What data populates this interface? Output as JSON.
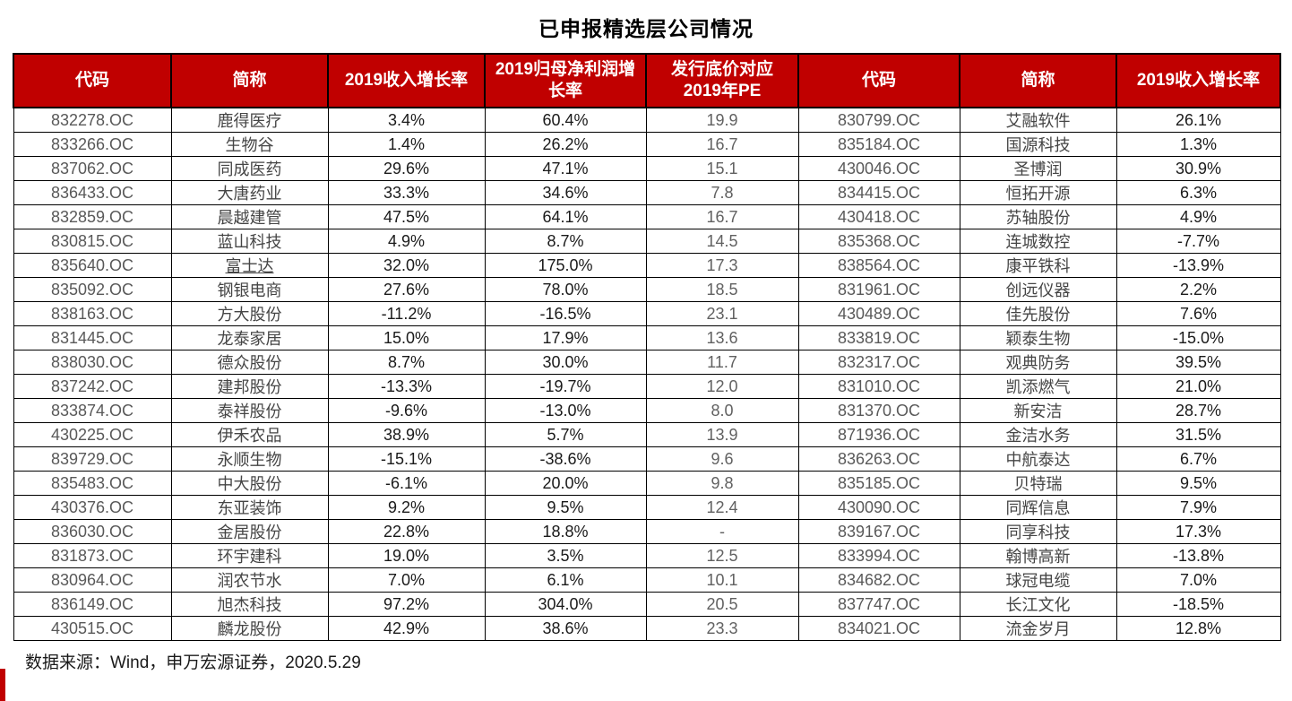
{
  "title": "已申报精选层公司情况",
  "colors": {
    "header_bg": "#C00000",
    "header_text": "#FFFFFF",
    "accent": "#C00000"
  },
  "table": {
    "headers": [
      "代码",
      "简称",
      "2019收入增长率",
      "2019归母净利润增长率",
      "发行底价对应2019年PE",
      "代码",
      "简称",
      "2019收入增长率"
    ],
    "underline_name_rows": [
      6
    ],
    "rows": [
      [
        "832278.OC",
        "鹿得医疗",
        "3.4%",
        "60.4%",
        "19.9",
        "830799.OC",
        "艾融软件",
        "26.1%"
      ],
      [
        "833266.OC",
        "生物谷",
        "1.4%",
        "26.2%",
        "16.7",
        "835184.OC",
        "国源科技",
        "1.3%"
      ],
      [
        "837062.OC",
        "同成医药",
        "29.6%",
        "47.1%",
        "15.1",
        "430046.OC",
        "圣博润",
        "30.9%"
      ],
      [
        "836433.OC",
        "大唐药业",
        "33.3%",
        "34.6%",
        "7.8",
        "834415.OC",
        "恒拓开源",
        "6.3%"
      ],
      [
        "832859.OC",
        "晨越建管",
        "47.5%",
        "64.1%",
        "16.7",
        "430418.OC",
        "苏轴股份",
        "4.9%"
      ],
      [
        "830815.OC",
        "蓝山科技",
        "4.9%",
        "8.7%",
        "14.5",
        "835368.OC",
        "连城数控",
        "-7.7%"
      ],
      [
        "835640.OC",
        "富士达",
        "32.0%",
        "175.0%",
        "17.3",
        "838564.OC",
        "康平铁科",
        "-13.9%"
      ],
      [
        "835092.OC",
        "钢银电商",
        "27.6%",
        "78.0%",
        "18.5",
        "831961.OC",
        "创远仪器",
        "2.2%"
      ],
      [
        "838163.OC",
        "方大股份",
        "-11.2%",
        "-16.5%",
        "23.1",
        "430489.OC",
        "佳先股份",
        "7.6%"
      ],
      [
        "831445.OC",
        "龙泰家居",
        "15.0%",
        "17.9%",
        "13.6",
        "833819.OC",
        "颖泰生物",
        "-15.0%"
      ],
      [
        "838030.OC",
        "德众股份",
        "8.7%",
        "30.0%",
        "11.7",
        "832317.OC",
        "观典防务",
        "39.5%"
      ],
      [
        "837242.OC",
        "建邦股份",
        "-13.3%",
        "-19.7%",
        "12.0",
        "831010.OC",
        "凯添燃气",
        "21.0%"
      ],
      [
        "833874.OC",
        "泰祥股份",
        "-9.6%",
        "-13.0%",
        "8.0",
        "831370.OC",
        "新安洁",
        "28.7%"
      ],
      [
        "430225.OC",
        "伊禾农品",
        "38.9%",
        "5.7%",
        "13.9",
        "871936.OC",
        "金洁水务",
        "31.5%"
      ],
      [
        "839729.OC",
        "永顺生物",
        "-15.1%",
        "-38.6%",
        "9.6",
        "836263.OC",
        "中航泰达",
        "6.7%"
      ],
      [
        "835483.OC",
        "中大股份",
        "-6.1%",
        "20.0%",
        "9.8",
        "835185.OC",
        "贝特瑞",
        "9.5%"
      ],
      [
        "430376.OC",
        "东亚装饰",
        "9.2%",
        "9.5%",
        "12.4",
        "430090.OC",
        "同辉信息",
        "7.9%"
      ],
      [
        "836030.OC",
        "金居股份",
        "22.8%",
        "18.8%",
        "-",
        "839167.OC",
        "同享科技",
        "17.3%"
      ],
      [
        "831873.OC",
        "环宇建科",
        "19.0%",
        "3.5%",
        "12.5",
        "833994.OC",
        "翰博高新",
        "-13.8%"
      ],
      [
        "830964.OC",
        "润农节水",
        "7.0%",
        "6.1%",
        "10.1",
        "834682.OC",
        "球冠电缆",
        "7.0%"
      ],
      [
        "836149.OC",
        "旭杰科技",
        "97.2%",
        "304.0%",
        "20.5",
        "837747.OC",
        "长江文化",
        "-18.5%"
      ],
      [
        "430515.OC",
        "麟龙股份",
        "42.9%",
        "38.6%",
        "23.3",
        "834021.OC",
        "流金岁月",
        "12.8%"
      ]
    ]
  },
  "footer": {
    "source": "数据来源：Wind，申万宏源证券，2020.5.29"
  }
}
